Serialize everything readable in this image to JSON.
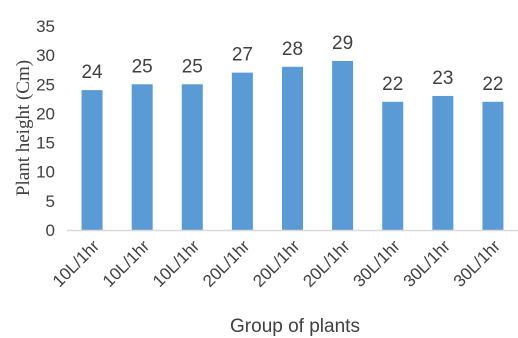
{
  "chart_data": {
    "type": "bar",
    "categories": [
      "10L/1hr",
      "10L/1hr",
      "10L/1hr",
      "20L/1hr",
      "20L/1hr",
      "20L/1hr",
      "30L/1hr",
      "30L/1hr",
      "30L/1hr"
    ],
    "values": [
      24,
      25,
      25,
      27,
      28,
      29,
      22,
      23,
      22
    ],
    "data_labels": [
      "24",
      "25",
      "25",
      "27",
      "28",
      "29",
      "22",
      "23",
      "22"
    ],
    "xlabel": "Group of plants",
    "ylabel": "Plant height (Cm)",
    "ylim": [
      0,
      35
    ],
    "yticks": [
      0,
      5,
      10,
      15,
      20,
      25,
      30,
      35
    ],
    "ytick_labels": [
      "0",
      "5",
      "10",
      "15",
      "20",
      "25",
      "30",
      "35"
    ],
    "grid": false,
    "legend": "none",
    "bar_color": "#5b9bd5",
    "axis_color": "#d9d9d9",
    "text_color": "#404040"
  }
}
